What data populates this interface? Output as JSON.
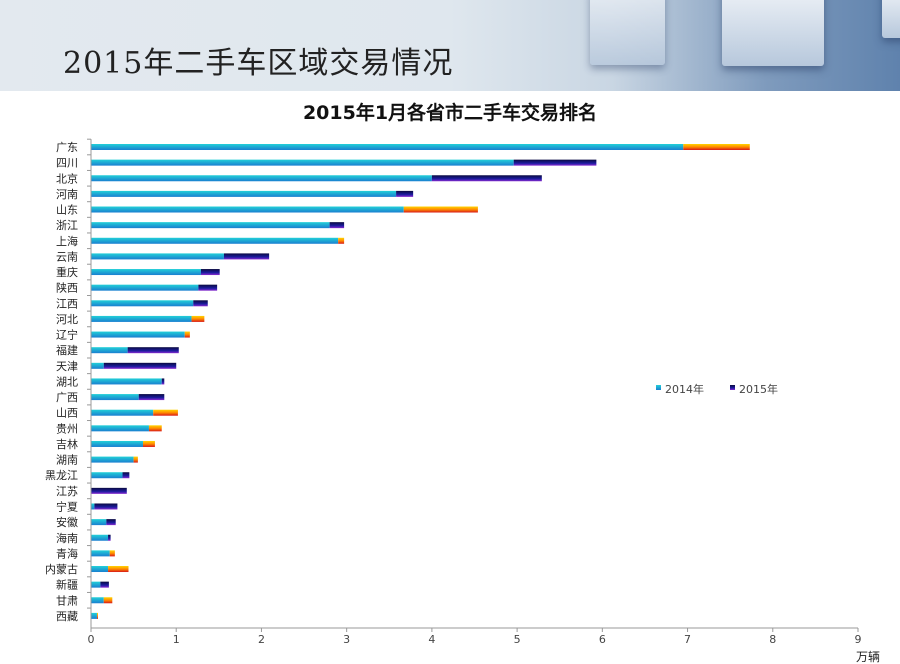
{
  "slide_title": "2015年二手车区域交易情况",
  "chart_data": {
    "type": "bar",
    "orientation": "horizontal",
    "title": "2015年1月各省市二手车交易排名",
    "xlabel": "万辆",
    "xlim": [
      0,
      9
    ],
    "xticks": [
      "0",
      "1",
      "2",
      "3",
      "4",
      "5",
      "6",
      "7",
      "8",
      "9"
    ],
    "legend": {
      "position": "right",
      "entries": [
        "2014年",
        "2015年"
      ]
    },
    "colors": {
      "2014": "#1fb5d8",
      "increase": "#1a1a8c",
      "decrease": "#f07a10"
    },
    "categories": [
      "广东",
      "四川",
      "北京",
      "河南",
      "山东",
      "浙江",
      "上海",
      "云南",
      "重庆",
      "陕西",
      "江西",
      "河北",
      "辽宁",
      "福建",
      "天津",
      "湖北",
      "广西",
      "山西",
      "贵州",
      "吉林",
      "湖南",
      "黑龙江",
      "江苏",
      "宁夏",
      "安徽",
      "海南",
      "青海",
      "内蒙古",
      "新疆",
      "甘肃",
      "西藏"
    ],
    "series": [
      {
        "name": "2014年",
        "values": [
          6.95,
          4.96,
          4.0,
          3.58,
          3.67,
          2.8,
          2.9,
          1.56,
          1.29,
          1.26,
          1.2,
          1.18,
          1.1,
          0.43,
          0.15,
          0.83,
          0.56,
          0.73,
          0.68,
          0.61,
          0.5,
          0.37,
          0.0,
          0.04,
          0.18,
          0.2,
          0.22,
          0.2,
          0.11,
          0.15,
          0.07
        ]
      },
      {
        "name": "2015年",
        "values": [
          7.73,
          5.93,
          5.29,
          3.78,
          4.54,
          2.97,
          2.97,
          2.09,
          1.51,
          1.48,
          1.37,
          1.33,
          1.16,
          1.03,
          1.0,
          0.86,
          0.86,
          1.02,
          0.83,
          0.75,
          0.55,
          0.45,
          0.42,
          0.31,
          0.29,
          0.23,
          0.28,
          0.44,
          0.21,
          0.25,
          0.08
        ]
      }
    ],
    "extension_style": [
      "decrease",
      "increase",
      "increase",
      "increase",
      "decrease",
      "increase",
      "decrease",
      "increase",
      "increase",
      "increase",
      "increase",
      "decrease",
      "decrease",
      "increase",
      "increase",
      "increase",
      "increase",
      "decrease",
      "decrease",
      "decrease",
      "decrease",
      "increase",
      "increase",
      "increase",
      "increase",
      "increase",
      "decrease",
      "decrease",
      "increase",
      "decrease",
      "decrease"
    ]
  }
}
